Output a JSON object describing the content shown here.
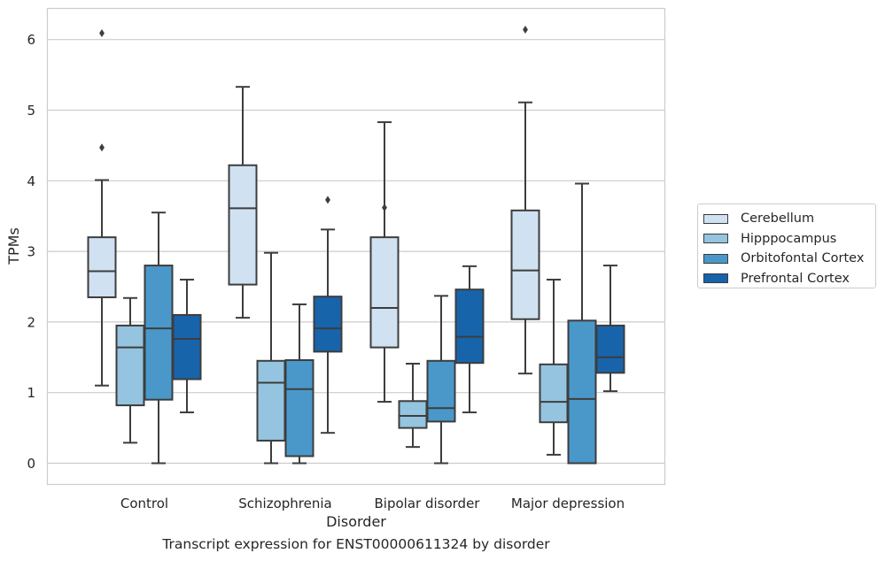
{
  "caption": "Transcript expression for ENST00000611324 by disorder",
  "chart_data": {
    "type": "box",
    "title": "",
    "xlabel": "Disorder",
    "ylabel": "TPMs",
    "ylim": [
      -0.3,
      6.45
    ],
    "yticks": [
      0,
      1,
      2,
      3,
      4,
      5,
      6
    ],
    "grid": true,
    "legend_position": "right",
    "categories": [
      "Control",
      "Schizophrenia",
      "Bipolar disorder",
      "Major depression"
    ],
    "series": [
      {
        "name": "Cerebellum",
        "color": "#d0e1f2",
        "boxes": [
          {
            "whisker_low": 1.1,
            "q1": 2.35,
            "median": 2.72,
            "q3": 3.2,
            "whisker_high": 4.01,
            "outliers": [
              4.47,
              6.09
            ]
          },
          {
            "whisker_low": 2.06,
            "q1": 2.53,
            "median": 3.61,
            "q3": 4.22,
            "whisker_high": 5.33,
            "outliers": []
          },
          {
            "whisker_low": 0.87,
            "q1": 1.64,
            "median": 2.2,
            "q3": 3.2,
            "whisker_high": 4.83,
            "outliers": [
              3.62
            ]
          },
          {
            "whisker_low": 1.27,
            "q1": 2.04,
            "median": 2.73,
            "q3": 3.58,
            "whisker_high": 5.11,
            "outliers": [
              6.14
            ]
          }
        ]
      },
      {
        "name": "Hipppocampus",
        "color": "#94c4df",
        "boxes": [
          {
            "whisker_low": 0.29,
            "q1": 0.82,
            "median": 1.64,
            "q3": 1.95,
            "whisker_high": 2.34,
            "outliers": []
          },
          {
            "whisker_low": 0.0,
            "q1": 0.32,
            "median": 1.14,
            "q3": 1.45,
            "whisker_high": 2.98,
            "outliers": []
          },
          {
            "whisker_low": 0.23,
            "q1": 0.5,
            "median": 0.67,
            "q3": 0.88,
            "whisker_high": 1.41,
            "outliers": []
          },
          {
            "whisker_low": 0.12,
            "q1": 0.58,
            "median": 0.87,
            "q3": 1.4,
            "whisker_high": 2.6,
            "outliers": []
          }
        ]
      },
      {
        "name": "Orbitofontal Cortex",
        "color": "#4a98c9",
        "boxes": [
          {
            "whisker_low": 0.0,
            "q1": 0.9,
            "median": 1.91,
            "q3": 2.8,
            "whisker_high": 3.55,
            "outliers": []
          },
          {
            "whisker_low": 0.0,
            "q1": 0.1,
            "median": 1.05,
            "q3": 1.46,
            "whisker_high": 2.25,
            "outliers": []
          },
          {
            "whisker_low": 0.0,
            "q1": 0.59,
            "median": 0.78,
            "q3": 1.45,
            "whisker_high": 2.37,
            "outliers": []
          },
          {
            "whisker_low": 0.0,
            "q1": 0.0,
            "median": 0.91,
            "q3": 2.02,
            "whisker_high": 3.96,
            "outliers": []
          }
        ]
      },
      {
        "name": "Prefrontal Cortex",
        "color": "#1764ab",
        "boxes": [
          {
            "whisker_low": 0.72,
            "q1": 1.19,
            "median": 1.76,
            "q3": 2.1,
            "whisker_high": 2.6,
            "outliers": []
          },
          {
            "whisker_low": 0.43,
            "q1": 1.58,
            "median": 1.91,
            "q3": 2.36,
            "whisker_high": 3.31,
            "outliers": [
              3.73
            ]
          },
          {
            "whisker_low": 0.72,
            "q1": 1.42,
            "median": 1.79,
            "q3": 2.46,
            "whisker_high": 2.79,
            "outliers": []
          },
          {
            "whisker_low": 1.02,
            "q1": 1.28,
            "median": 1.5,
            "q3": 1.95,
            "whisker_high": 2.8,
            "outliers": []
          }
        ]
      }
    ]
  }
}
